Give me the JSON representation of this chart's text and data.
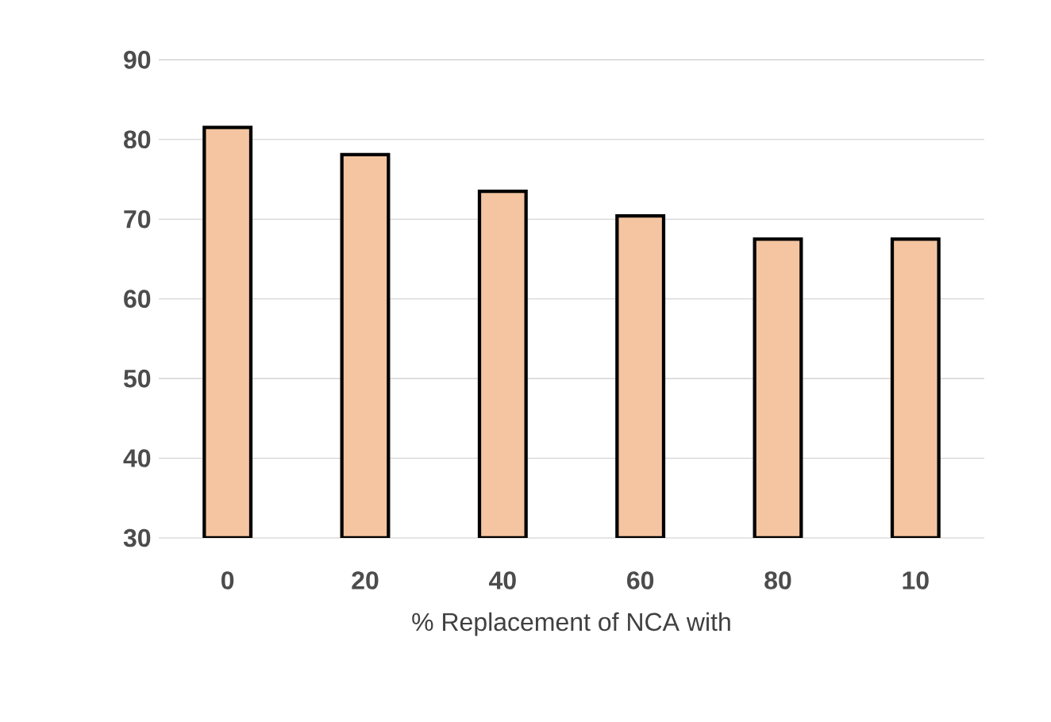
{
  "chart_data": {
    "type": "bar",
    "xlabel": "% Replacement of NCA with",
    "categories": [
      "0",
      "20",
      "40",
      "60",
      "80",
      "10"
    ],
    "values": [
      81.5,
      78.1,
      73.5,
      70.4,
      67.5,
      67.5
    ],
    "color": "#f4c5a0",
    "ylim": [
      30,
      90
    ],
    "yticks": [
      30,
      40,
      50,
      60,
      70,
      80,
      90
    ],
    "grid": "y"
  }
}
